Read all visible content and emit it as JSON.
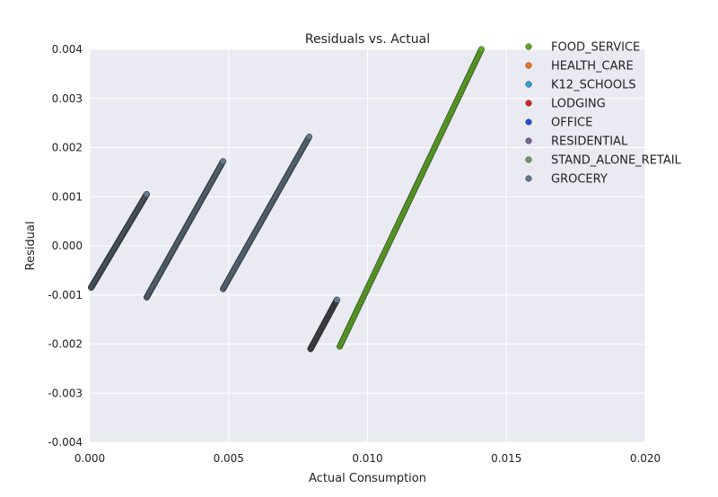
{
  "chart_data": {
    "type": "scatter",
    "title": "Residuals vs. Actual",
    "xlabel": "Actual Consumption",
    "ylabel": "Residual",
    "xlim": [
      0.0,
      0.02
    ],
    "ylim": [
      -0.004,
      0.004
    ],
    "x_ticks": [
      "0.000",
      "0.005",
      "0.010",
      "0.015",
      "0.020"
    ],
    "y_ticks": [
      "-0.004",
      "-0.003",
      "-0.002",
      "-0.001",
      "0.000",
      "0.001",
      "0.002",
      "0.003",
      "0.004"
    ],
    "grid": true,
    "background": "#EAEAF2",
    "legend_position": "top-right",
    "series": [
      {
        "name": "FOOD_SERVICE",
        "color": "#5BAA1F",
        "segments": [
          [
            0.009,
            -0.00205,
            0.0141,
            0.004
          ]
        ]
      },
      {
        "name": "HEALTH_CARE",
        "color": "#F0761D",
        "segments": []
      },
      {
        "name": "K12_SCHOOLS",
        "color": "#2AA1D8",
        "segments": []
      },
      {
        "name": "LODGING",
        "color": "#DC2020",
        "segments": []
      },
      {
        "name": "OFFICE",
        "color": "#1F4FD6",
        "segments": []
      },
      {
        "name": "RESIDENTIAL",
        "color": "#77669A",
        "segments": []
      },
      {
        "name": "STAND_ALONE_RETAIL",
        "color": "#6A9A5C",
        "segments": [
          [
            5e-05,
            -0.00085,
            0.00205,
            0.00105
          ]
        ]
      },
      {
        "name": "GROCERY",
        "color": "#5F7A8F",
        "segments": [
          [
            5e-05,
            -0.00085,
            0.00205,
            0.00105
          ],
          [
            0.00205,
            -0.00105,
            0.0048,
            0.00172
          ],
          [
            0.0048,
            -0.00088,
            0.0079,
            0.00222
          ],
          [
            0.00795,
            -0.0021,
            0.0089,
            -0.0011
          ]
        ]
      }
    ]
  }
}
